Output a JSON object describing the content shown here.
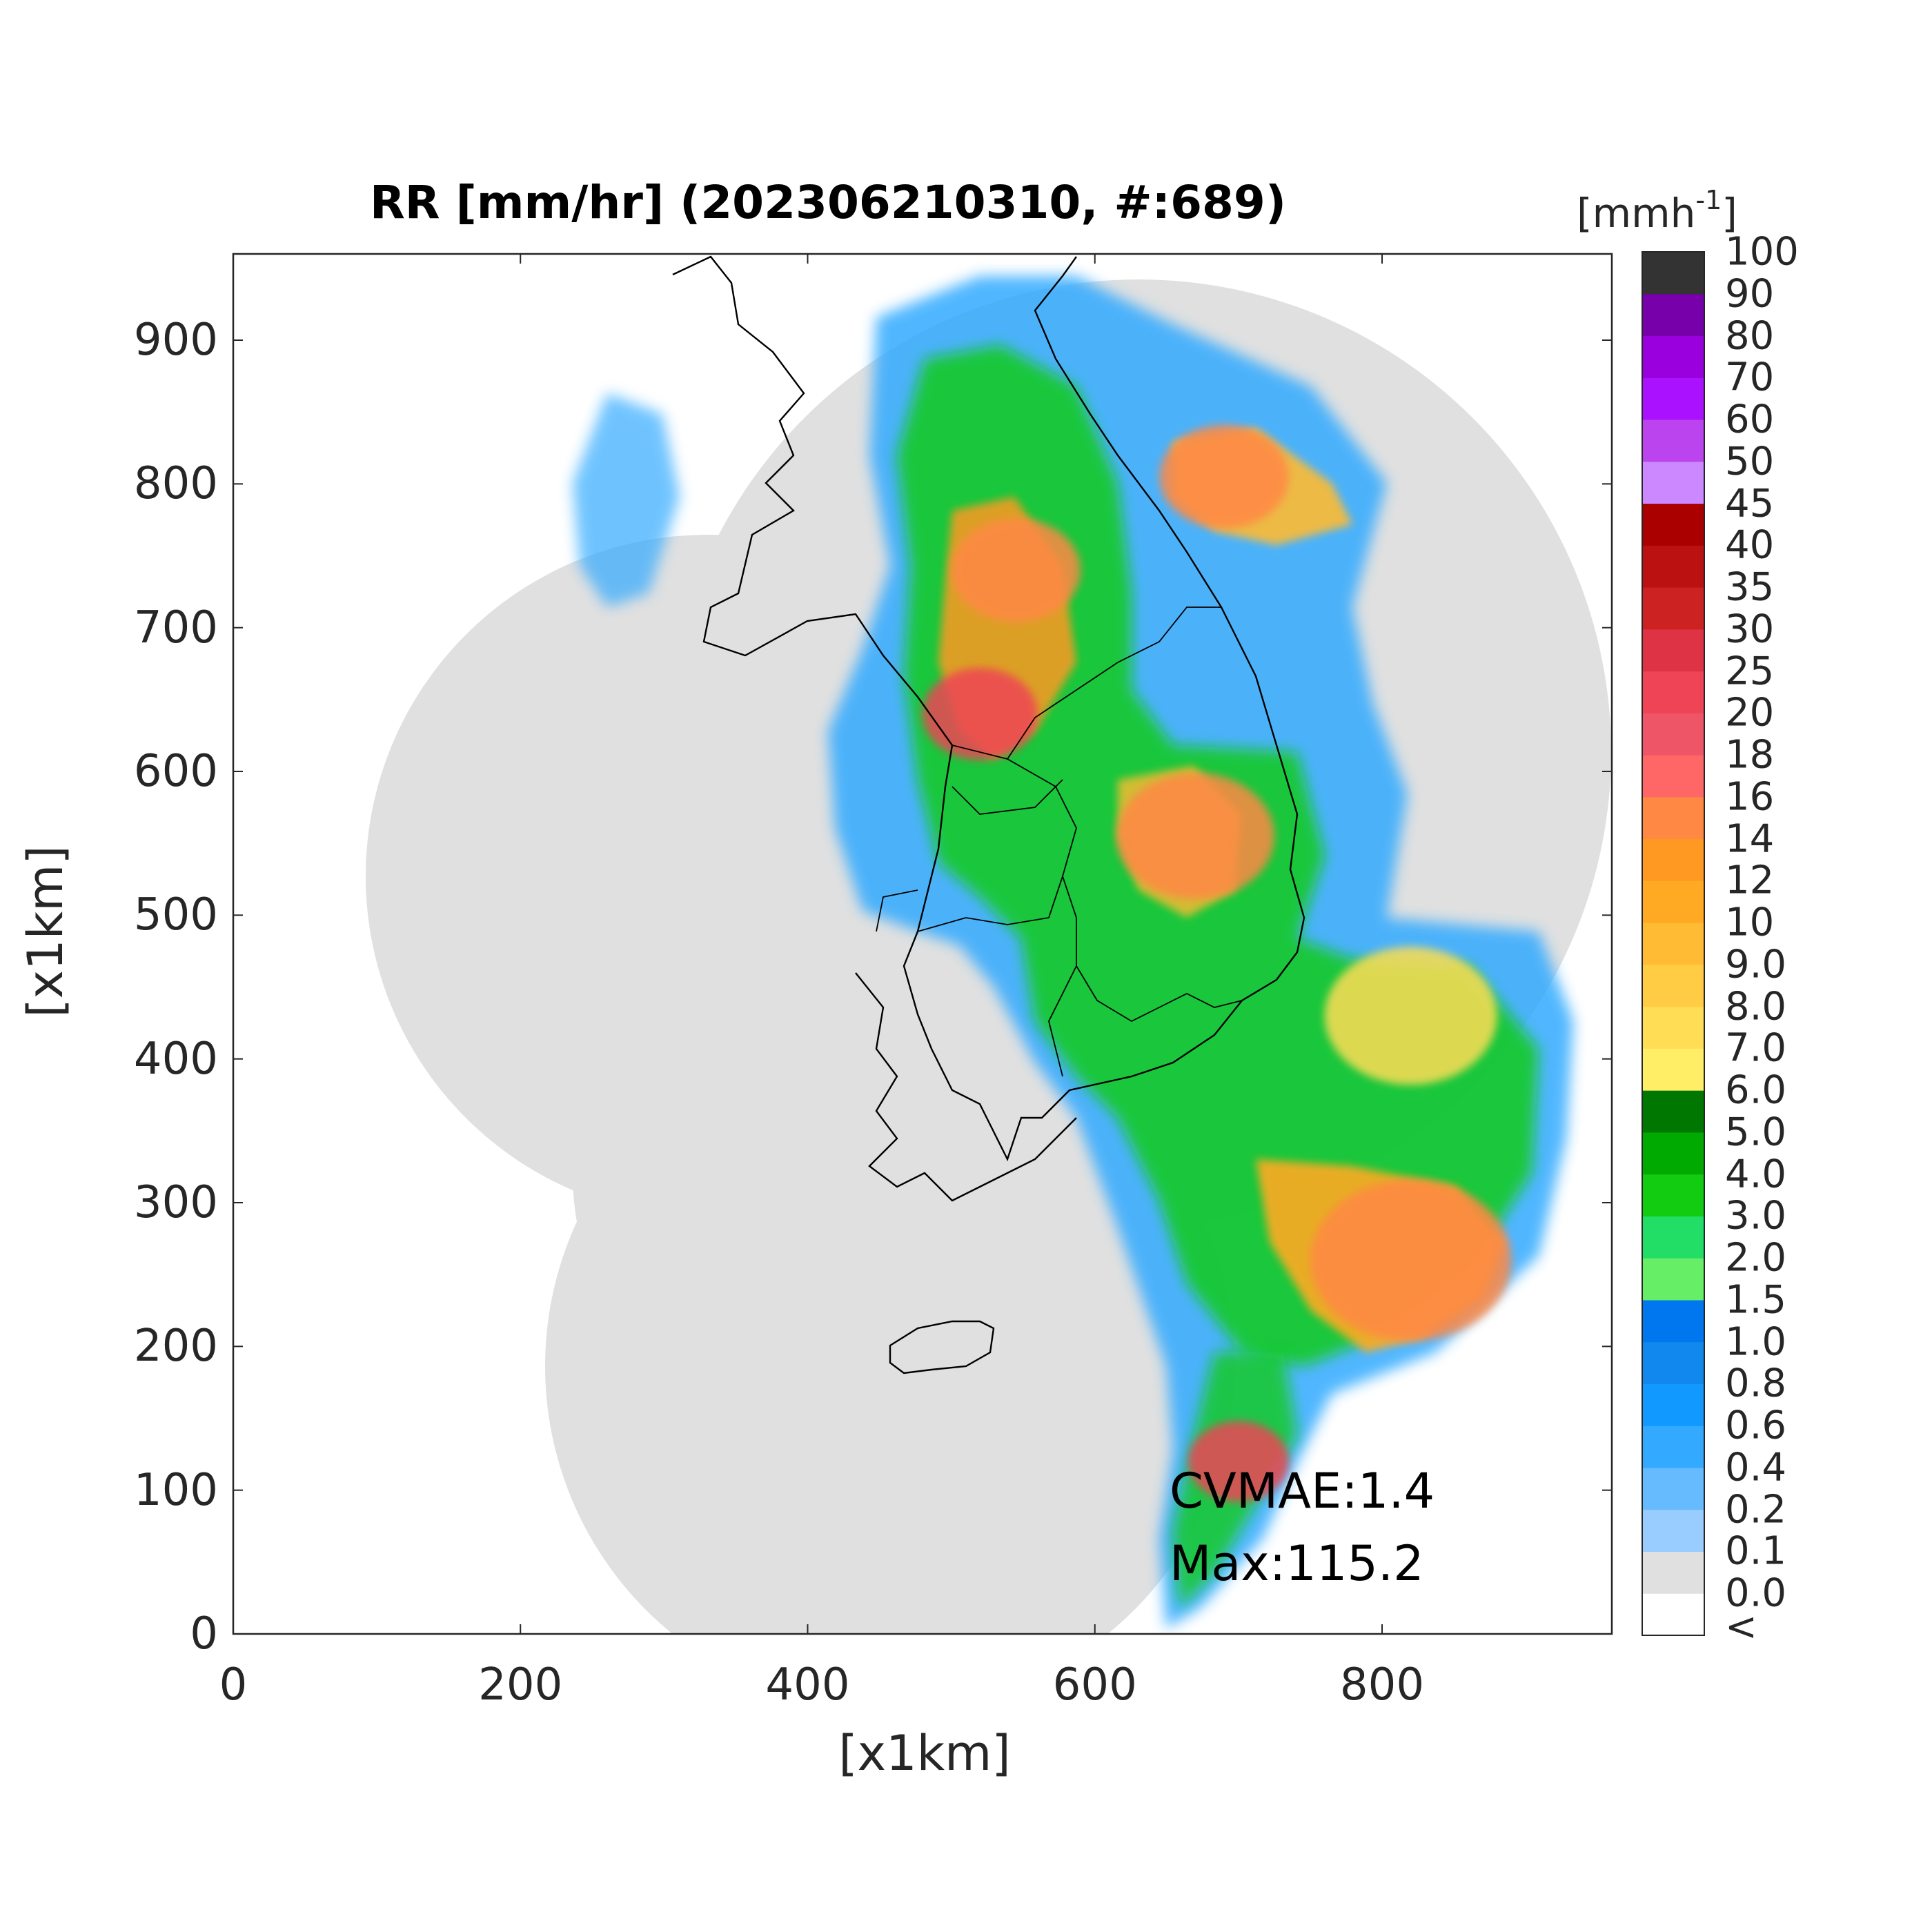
{
  "title": "RR [mm/hr] (202306210310, #:689)",
  "xlabel": "[x1km]",
  "ylabel": "[x1km]",
  "xticks": [
    "0",
    "200",
    "400",
    "600",
    "800"
  ],
  "yticks": [
    "0",
    "100",
    "200",
    "300",
    "400",
    "500",
    "600",
    "700",
    "800",
    "900"
  ],
  "xlim": [
    0,
    960
  ],
  "ylim": [
    0,
    960
  ],
  "colorbar": {
    "unit_base": "[mmh",
    "unit_exp": "-1",
    "unit_close": "]",
    "labels": [
      "<",
      "0.0",
      "0.1",
      "0.2",
      "0.4",
      "0.6",
      "0.8",
      "1.0",
      "1.5",
      "2.0",
      "3.0",
      "4.0",
      "5.0",
      "6.0",
      "7.0",
      "8.0",
      "9.0",
      "10",
      "12",
      "14",
      "16",
      "18",
      "20",
      "25",
      "30",
      "35",
      "40",
      "45",
      "50",
      "60",
      "70",
      "80",
      "90",
      "100"
    ],
    "colors": [
      "#ffffff",
      "#e0e0e0",
      "#99ccff",
      "#66bbff",
      "#33aaff",
      "#1199ff",
      "#1188ee",
      "#0077ee",
      "#66ee66",
      "#22dd66",
      "#11cc11",
      "#00aa00",
      "#007700",
      "#ffee66",
      "#ffdd55",
      "#ffcc44",
      "#ffbb33",
      "#ffaa22",
      "#ff9922",
      "#ff8844",
      "#ff6666",
      "#ee5566",
      "#ee4455",
      "#dd3344",
      "#cc2222",
      "#bb1111",
      "#aa0000",
      "#cc88ff",
      "#bb44ee",
      "#aa11ff",
      "#9900dd",
      "#7700aa",
      "#333333"
    ]
  },
  "annotations": {
    "cvmae": "CVMAE:1.4",
    "max": "Max:115.2"
  },
  "rain_cells": [
    {
      "x": 690,
      "y": 805,
      "r": 45,
      "level": "orange"
    },
    {
      "x": 545,
      "y": 740,
      "r": 45,
      "level": "orange"
    },
    {
      "x": 520,
      "y": 640,
      "r": 40,
      "level": "red"
    },
    {
      "x": 670,
      "y": 555,
      "r": 55,
      "level": "orange"
    },
    {
      "x": 820,
      "y": 260,
      "r": 70,
      "level": "orange"
    },
    {
      "x": 700,
      "y": 120,
      "r": 35,
      "level": "red"
    },
    {
      "x": 820,
      "y": 430,
      "r": 60,
      "level": "yellow"
    }
  ]
}
